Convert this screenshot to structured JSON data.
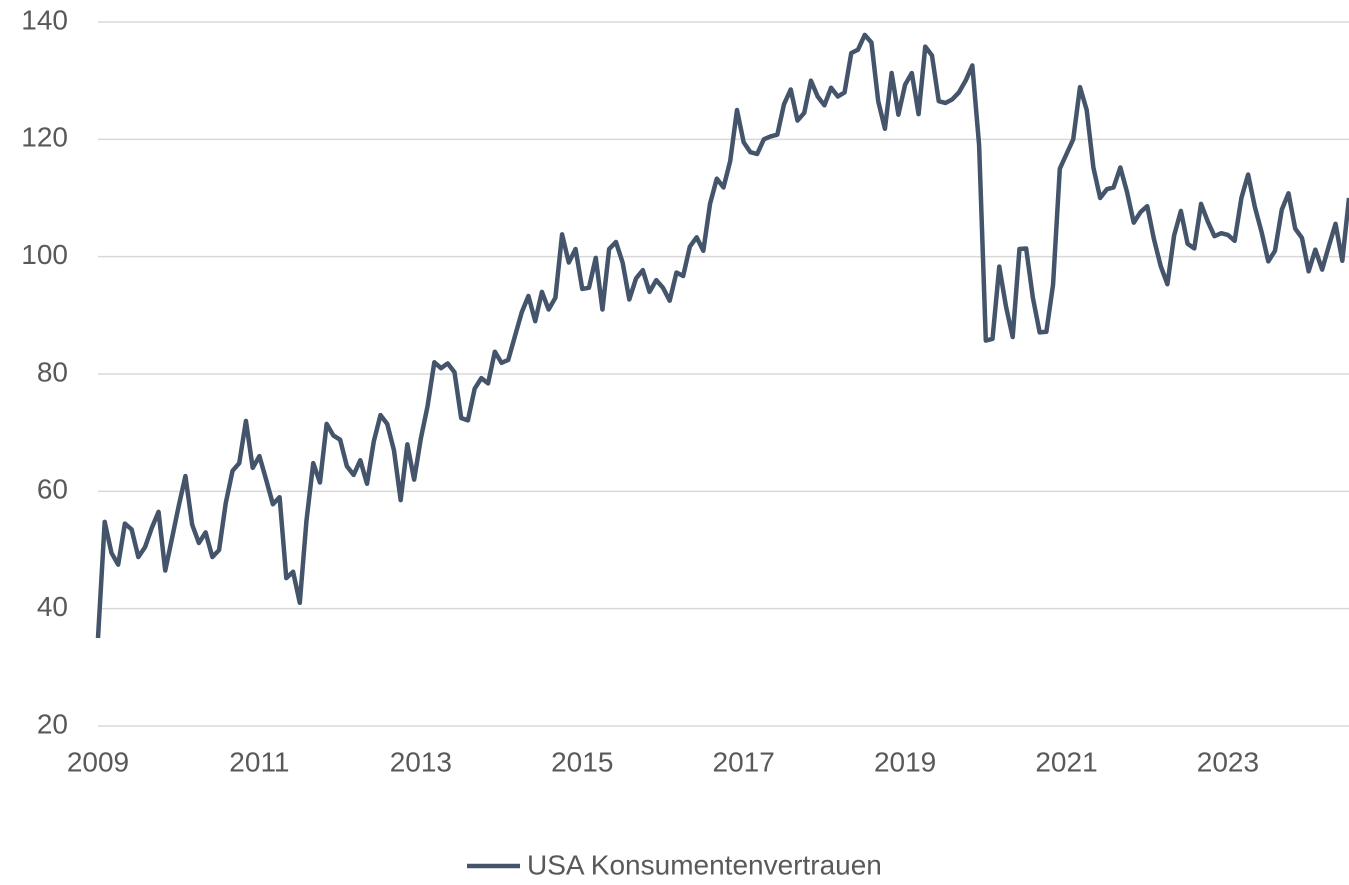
{
  "chart_data": {
    "type": "line",
    "x": [
      2009,
      2009.083,
      2009.167,
      2009.25,
      2009.333,
      2009.417,
      2009.5,
      2009.583,
      2009.667,
      2009.75,
      2009.833,
      2009.917,
      2010,
      2010.083,
      2010.167,
      2010.25,
      2010.333,
      2010.417,
      2010.5,
      2010.583,
      2010.667,
      2010.75,
      2010.833,
      2010.917,
      2011,
      2011.083,
      2011.167,
      2011.25,
      2011.333,
      2011.417,
      2011.5,
      2011.583,
      2011.667,
      2011.75,
      2011.833,
      2011.917,
      2012,
      2012.083,
      2012.167,
      2012.25,
      2012.333,
      2012.417,
      2012.5,
      2012.583,
      2012.667,
      2012.75,
      2012.833,
      2012.917,
      2013,
      2013.083,
      2013.167,
      2013.25,
      2013.333,
      2013.417,
      2013.5,
      2013.583,
      2013.667,
      2013.75,
      2013.833,
      2013.917,
      2014,
      2014.083,
      2014.167,
      2014.25,
      2014.333,
      2014.417,
      2014.5,
      2014.583,
      2014.667,
      2014.75,
      2014.833,
      2014.917,
      2015,
      2015.083,
      2015.167,
      2015.25,
      2015.333,
      2015.417,
      2015.5,
      2015.583,
      2015.667,
      2015.75,
      2015.833,
      2015.917,
      2016,
      2016.083,
      2016.167,
      2016.25,
      2016.333,
      2016.417,
      2016.5,
      2016.583,
      2016.667,
      2016.75,
      2016.833,
      2016.917,
      2017,
      2017.083,
      2017.167,
      2017.25,
      2017.333,
      2017.417,
      2017.5,
      2017.583,
      2017.667,
      2017.75,
      2017.833,
      2017.917,
      2018,
      2018.083,
      2018.167,
      2018.25,
      2018.333,
      2018.417,
      2018.5,
      2018.583,
      2018.667,
      2018.75,
      2018.833,
      2018.917,
      2019,
      2019.083,
      2019.167,
      2019.25,
      2019.333,
      2019.417,
      2019.5,
      2019.583,
      2019.667,
      2019.75,
      2019.833,
      2019.917,
      2020,
      2020.083,
      2020.167,
      2020.25,
      2020.333,
      2020.417,
      2020.5,
      2020.583,
      2020.667,
      2020.75,
      2020.833,
      2020.917,
      2021,
      2021.083,
      2021.167,
      2021.25,
      2021.333,
      2021.417,
      2021.5,
      2021.583,
      2021.667,
      2021.75,
      2021.833,
      2021.917,
      2022,
      2022.083,
      2022.167,
      2022.25,
      2022.333,
      2022.417,
      2022.5,
      2022.583,
      2022.667,
      2022.75,
      2022.833,
      2022.917,
      2023,
      2023.083,
      2023.167,
      2023.25,
      2023.333,
      2023.417,
      2023.5,
      2023.583,
      2023.667,
      2023.75,
      2023.833,
      2023.917,
      2024,
      2024.083,
      2024.167,
      2024.25,
      2024.333,
      2024.417,
      2024.5
    ],
    "series": [
      {
        "name": "USA Konsumentenvertrauen",
        "color": "#44546a",
        "values": [
          35,
          54.8,
          49.5,
          47.5,
          54.5,
          53.5,
          48.8,
          50.5,
          53.8,
          56.5,
          46.5,
          52,
          57.5,
          62.6,
          54.3,
          51.2,
          53,
          48.8,
          50,
          58,
          63.5,
          64.8,
          72,
          64,
          66,
          62,
          57.8,
          59,
          45.2,
          46.3,
          41,
          55,
          64.8,
          61.5,
          71.5,
          69.5,
          68.8,
          64.3,
          62.8,
          65.3,
          61.3,
          68.5,
          73,
          71.5,
          67,
          58.5,
          68,
          62,
          69,
          74.5,
          82,
          81,
          81.8,
          80.3,
          72.5,
          72.1,
          77.5,
          79.3,
          78.4,
          83.8,
          81.9,
          82.4,
          86.5,
          90.5,
          93.3,
          89,
          94,
          91,
          93,
          103.8,
          99,
          101.3,
          94.5,
          94.7,
          99.8,
          91,
          101.3,
          102.5,
          99,
          92.7,
          96.3,
          97.7,
          94,
          96,
          94.7,
          92.5,
          97.3,
          96.7,
          101.7,
          103.3,
          101,
          109,
          113.3,
          111.8,
          116.3,
          125,
          119.5,
          117.8,
          117.5,
          120,
          120.5,
          120.8,
          126,
          128.5,
          123.2,
          124.5,
          130,
          127.3,
          125.8,
          128.8,
          127.3,
          128,
          134.7,
          135.3,
          137.8,
          136.5,
          126.5,
          121.8,
          131.3,
          124.2,
          129.3,
          131.3,
          124.3,
          135.8,
          134.3,
          126.5,
          126.2,
          126.8,
          128,
          130,
          132.6,
          119,
          85.7,
          86,
          98.3,
          91.5,
          86.3,
          101.3,
          101.4,
          93,
          87.1,
          87.2,
          95.2,
          115,
          117.5,
          120,
          128.9,
          125,
          115.2,
          110,
          111.5,
          111.8,
          115.2,
          111,
          105.8,
          107.6,
          108.6,
          103,
          98.4,
          95.3,
          103.6,
          107.8,
          102.2,
          101.4,
          109,
          106,
          103.5,
          104,
          103.7,
          102.7,
          110,
          114,
          108.5,
          104.2,
          99.2,
          101,
          108,
          110.8,
          104.8,
          103.2,
          97.5,
          101.2,
          97.8,
          101.8,
          105.6,
          99.3,
          110
        ]
      }
    ],
    "xlim": [
      2009,
      2024.5
    ],
    "xticks": [
      2009,
      2011,
      2013,
      2015,
      2017,
      2019,
      2021,
      2023
    ],
    "ylim": [
      20,
      140
    ],
    "yticks": [
      20,
      40,
      60,
      80,
      100,
      120,
      140
    ],
    "grid": true,
    "legend": "bottom"
  }
}
